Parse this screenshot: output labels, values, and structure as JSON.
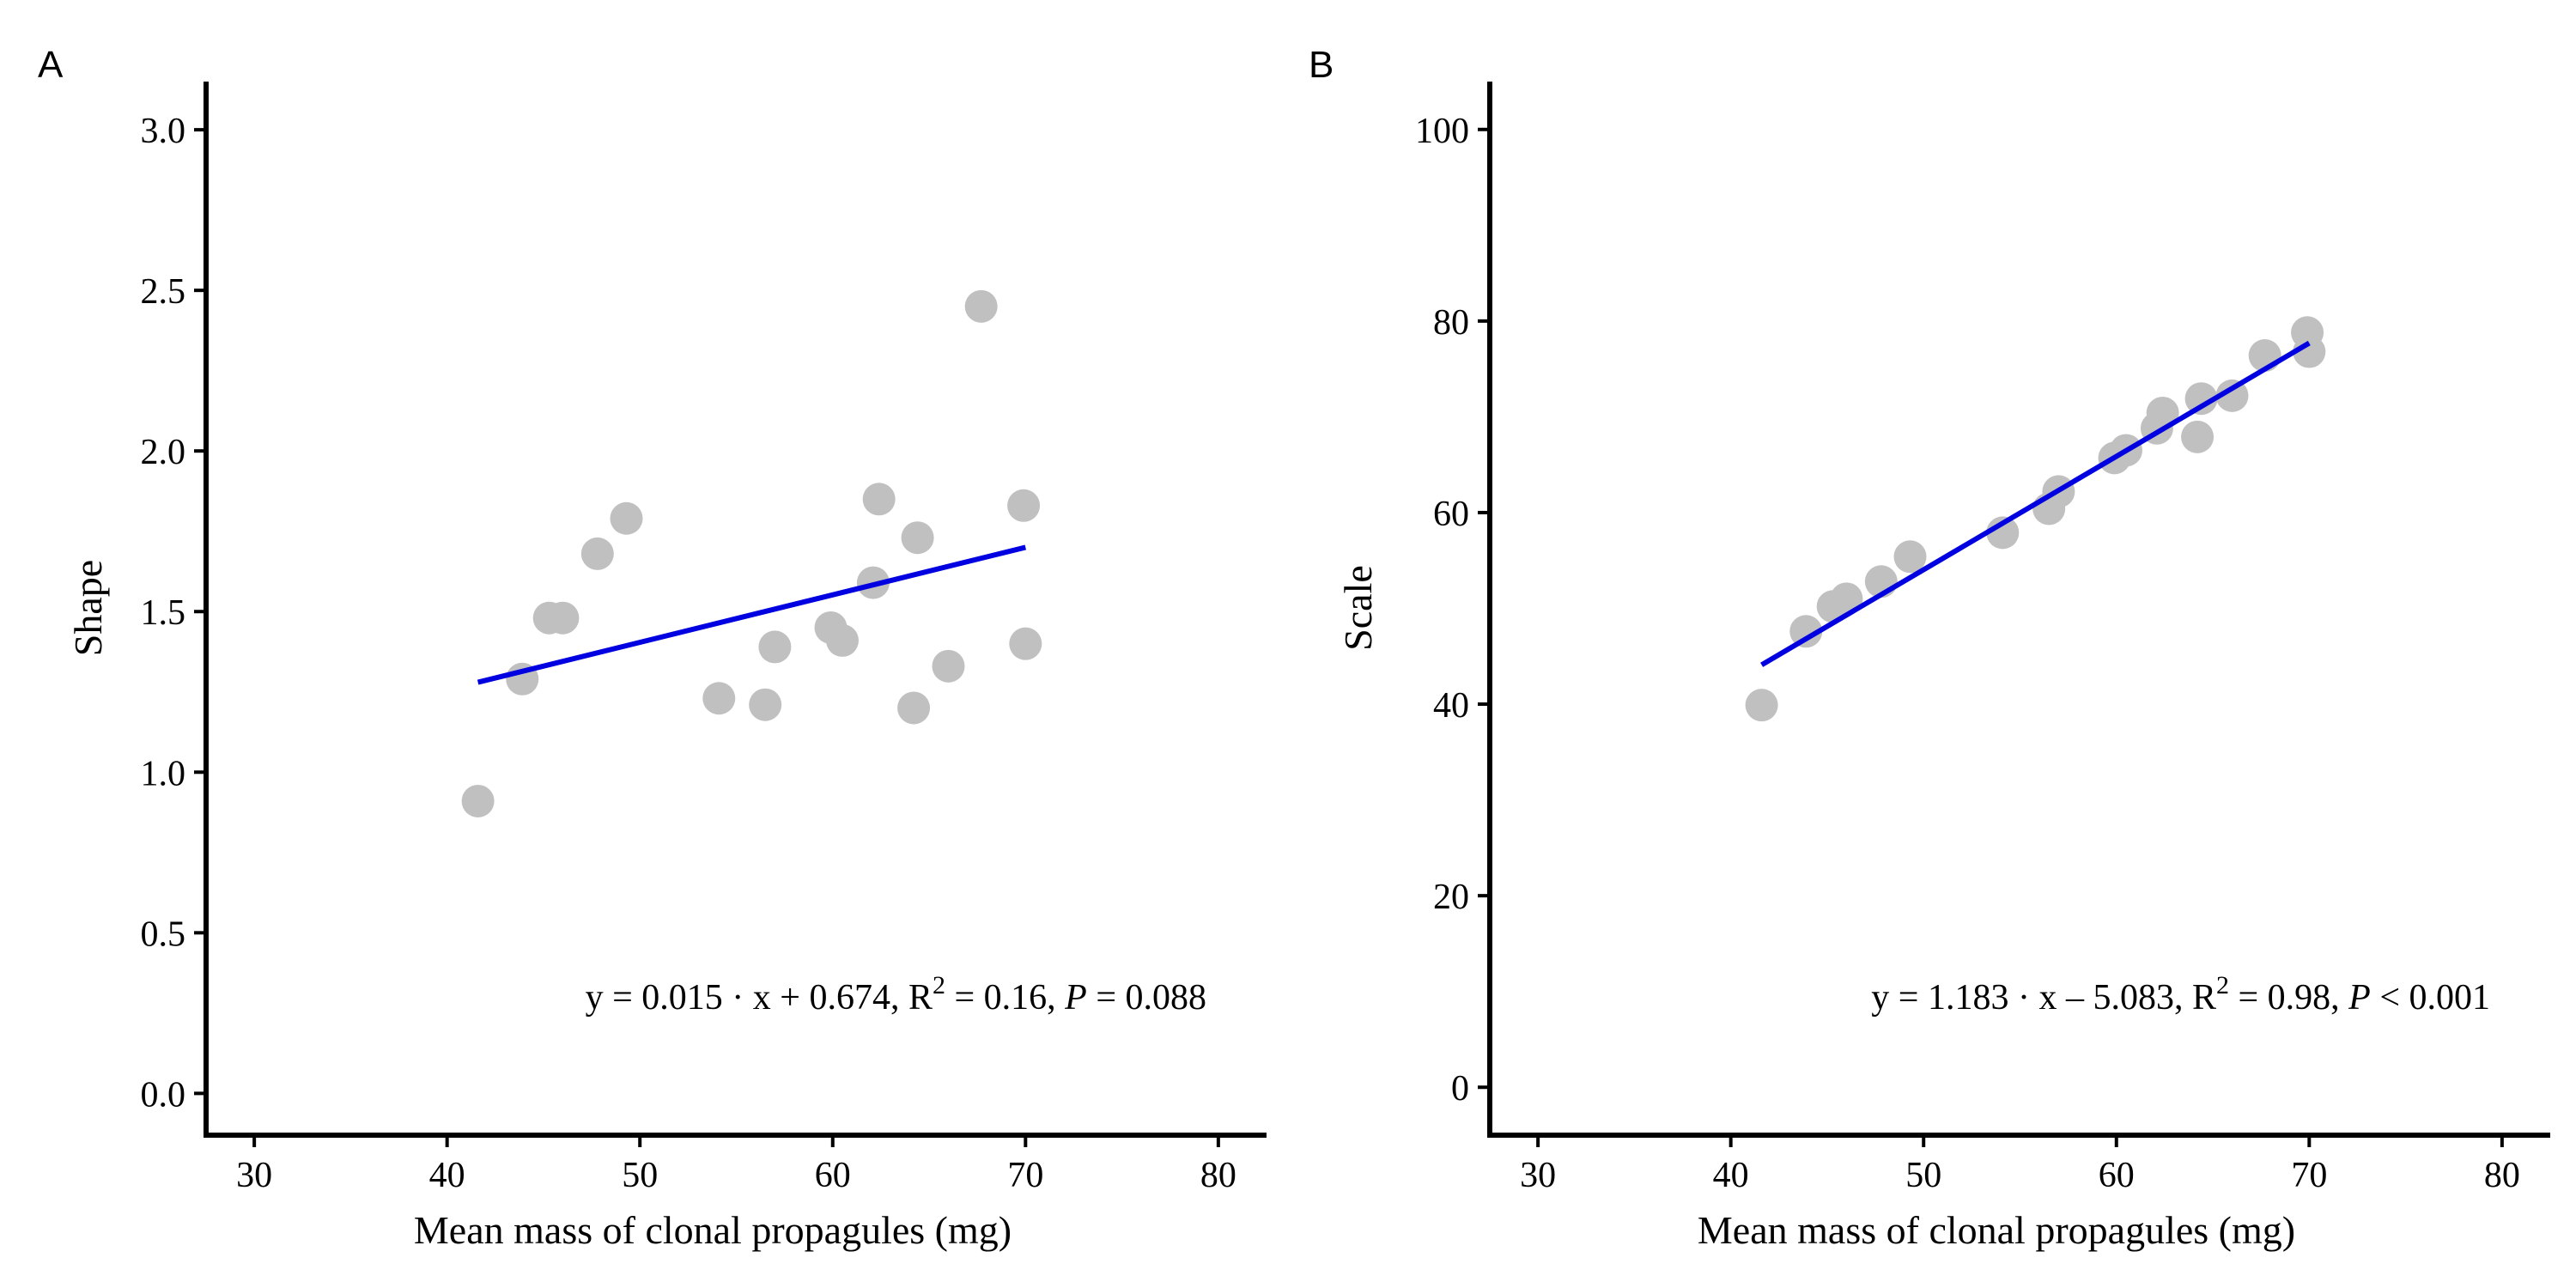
{
  "chart_data": [
    {
      "panel_label": "A",
      "type": "scatter",
      "xlabel": "Mean mass of clonal propagules (mg)",
      "ylabel": "Shape",
      "xlim": [
        27.5,
        82.5
      ],
      "ylim": [
        -0.13,
        3.15
      ],
      "x_ticks": [
        30,
        40,
        50,
        60,
        70,
        80
      ],
      "x_tick_labels": [
        "30",
        "40",
        "50",
        "60",
        "70",
        "80"
      ],
      "y_ticks": [
        0.0,
        0.5,
        1.0,
        1.5,
        2.0,
        2.5,
        3.0
      ],
      "y_tick_labels": [
        "0.0",
        "0.5",
        "1.0",
        "1.5",
        "2.0",
        "2.5",
        "3.0"
      ],
      "grid": false,
      "point_color": "#c0c0c0",
      "line_color": "#0000e0",
      "points": [
        {
          "x": 41.6,
          "y": 0.91
        },
        {
          "x": 43.9,
          "y": 1.29
        },
        {
          "x": 45.3,
          "y": 1.48
        },
        {
          "x": 46.0,
          "y": 1.48
        },
        {
          "x": 47.8,
          "y": 1.68
        },
        {
          "x": 49.3,
          "y": 1.79
        },
        {
          "x": 54.1,
          "y": 1.23
        },
        {
          "x": 56.5,
          "y": 1.21
        },
        {
          "x": 57.0,
          "y": 1.39
        },
        {
          "x": 59.9,
          "y": 1.45
        },
        {
          "x": 60.5,
          "y": 1.41
        },
        {
          "x": 62.1,
          "y": 1.59
        },
        {
          "x": 62.4,
          "y": 1.85
        },
        {
          "x": 64.2,
          "y": 1.2
        },
        {
          "x": 64.4,
          "y": 1.73
        },
        {
          "x": 66.0,
          "y": 1.33
        },
        {
          "x": 67.7,
          "y": 2.45
        },
        {
          "x": 69.9,
          "y": 1.83
        },
        {
          "x": 70.0,
          "y": 1.4
        }
      ],
      "fit_line": {
        "x": [
          41.6,
          70.0
        ],
        "y": [
          1.28,
          1.7
        ]
      },
      "equation": {
        "lhs": "y = 0.015 · x + 0.674,  R",
        "sup": "2",
        "mid": " = 0.16,  ",
        "p_label": "P",
        "p_value": " = 0.088"
      }
    },
    {
      "panel_label": "B",
      "type": "scatter",
      "xlabel": "Mean mass of clonal propagules (mg)",
      "ylabel": "Scale",
      "xlim": [
        27.5,
        82.5
      ],
      "ylim": [
        -5,
        105
      ],
      "x_ticks": [
        30,
        40,
        50,
        60,
        70,
        80
      ],
      "x_tick_labels": [
        "30",
        "40",
        "50",
        "60",
        "70",
        "80"
      ],
      "y_ticks": [
        0,
        20,
        40,
        60,
        80,
        100
      ],
      "y_tick_labels": [
        "0",
        "20",
        "40",
        "60",
        "80",
        "100"
      ],
      "grid": false,
      "point_color": "#c0c0c0",
      "line_color": "#0000e0",
      "points": [
        {
          "x": 41.6,
          "y": 39.9
        },
        {
          "x": 43.9,
          "y": 47.6
        },
        {
          "x": 45.3,
          "y": 50.2
        },
        {
          "x": 46.0,
          "y": 51.0
        },
        {
          "x": 47.8,
          "y": 52.8
        },
        {
          "x": 49.3,
          "y": 55.4
        },
        {
          "x": 54.1,
          "y": 57.9
        },
        {
          "x": 56.5,
          "y": 60.4
        },
        {
          "x": 57.0,
          "y": 62.2
        },
        {
          "x": 59.9,
          "y": 65.7
        },
        {
          "x": 60.5,
          "y": 66.5
        },
        {
          "x": 62.1,
          "y": 68.8
        },
        {
          "x": 62.4,
          "y": 70.4
        },
        {
          "x": 64.2,
          "y": 67.9
        },
        {
          "x": 64.4,
          "y": 71.9
        },
        {
          "x": 66.0,
          "y": 72.2
        },
        {
          "x": 67.7,
          "y": 76.4
        },
        {
          "x": 69.9,
          "y": 78.8
        },
        {
          "x": 70.0,
          "y": 76.8
        }
      ],
      "fit_line": {
        "x": [
          41.6,
          70.0
        ],
        "y": [
          44.1,
          77.7
        ]
      },
      "equation": {
        "lhs": "y = 1.183 · x – 5.083,  R",
        "sup": "2",
        "mid": " = 0.98,  ",
        "p_label": "P",
        "p_value": " < 0.001"
      }
    }
  ]
}
